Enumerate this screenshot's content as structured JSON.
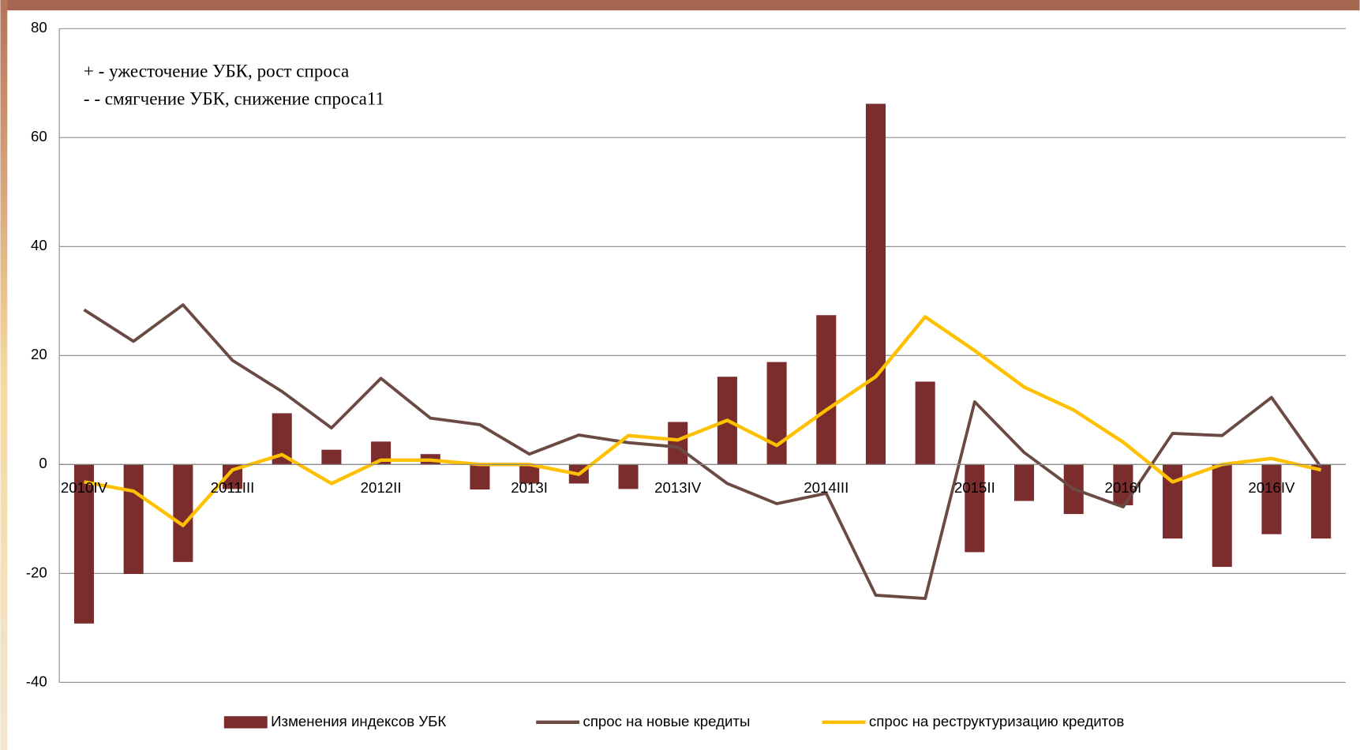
{
  "chart_data": {
    "type": "bar-line",
    "annotations": [
      "+ - ужесточение УБК, рост спроса",
      "- - смягчение УБК, снижение спроса11"
    ],
    "categories": [
      "2010IV",
      null,
      null,
      "2011III",
      null,
      null,
      "2012II",
      null,
      null,
      "2013I",
      null,
      null,
      "2013IV",
      null,
      null,
      "2014III",
      null,
      null,
      "2015II",
      null,
      null,
      "2016I",
      null,
      null,
      "2016IV",
      null
    ],
    "series": [
      {
        "name": "Изменения индексов УБК",
        "type": "bar",
        "color": "#7b2c2c",
        "values": [
          -29.2,
          -20.1,
          -17.9,
          -4.5,
          9.4,
          2.7,
          4.2,
          1.9,
          -4.6,
          -3.5,
          -3.5,
          -4.5,
          7.8,
          16.1,
          18.8,
          27.4,
          66.2,
          15.2,
          -16.1,
          -6.7,
          -9.1,
          -7.5,
          -13.6,
          -18.8,
          -12.8,
          -13.6
        ]
      },
      {
        "name": "спрос на новые кредиты",
        "type": "line",
        "color": "#6b4a44",
        "values": [
          28.4,
          22.6,
          29.3,
          19.1,
          13.4,
          6.7,
          15.8,
          8.5,
          7.3,
          1.9,
          5.4,
          4.0,
          3.2,
          -3.5,
          -7.2,
          -5.3,
          -24.0,
          -24.6,
          11.5,
          2.2,
          -4.5,
          -7.8,
          5.7,
          5.3,
          12.3,
          -0.5
        ]
      },
      {
        "name": "спрос на реструктуризацию кредитов",
        "type": "line",
        "color": "#ffc000",
        "values": [
          -3.2,
          -4.9,
          -11.2,
          -1.0,
          1.8,
          -3.5,
          0.8,
          0.8,
          0,
          0,
          -1.8,
          5.3,
          4.5,
          8.1,
          3.5,
          10.0,
          16.1,
          27.1,
          20.9,
          14.2,
          10.0,
          4.1,
          -3.2,
          0,
          1.1,
          -1.0
        ]
      }
    ],
    "ylim": [
      -40,
      80
    ],
    "yticks": [
      -40,
      -20,
      0,
      20,
      40,
      60,
      80
    ],
    "grid": true
  }
}
